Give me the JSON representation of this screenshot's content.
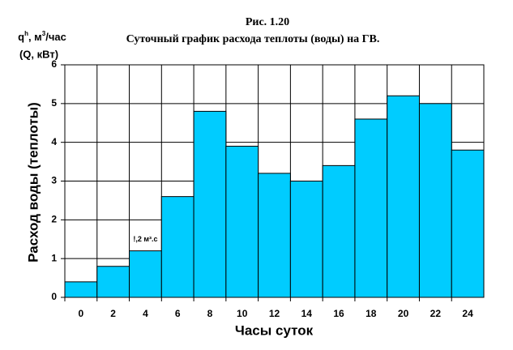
{
  "chart_data": {
    "type": "bar",
    "title": "Рис. 1.20",
    "subtitle": "Суточный график расхода теплоты (воды) на ГВ.",
    "y_unit": [
      "q",
      "h",
      ", м",
      "3",
      "/час"
    ],
    "y_unit_2": "(Q, кВт)",
    "ylabel": "Расход воды (теплоты)",
    "xlabel": "Часы суток",
    "annotation": "!,2 м³.с",
    "categories": [
      "0",
      "2",
      "4",
      "6",
      "8",
      "10",
      "12",
      "14",
      "16",
      "18",
      "20",
      "22",
      "24"
    ],
    "values": [
      0.4,
      0.8,
      1.2,
      2.6,
      4.8,
      3.9,
      3.2,
      3.0,
      3.4,
      4.6,
      5.2,
      5.0,
      3.8
    ],
    "color": "#00ccff",
    "ylim": [
      0,
      6
    ],
    "yticks": [
      0,
      1,
      2,
      3,
      4,
      5,
      6
    ],
    "grid": true,
    "xgrid": true
  }
}
